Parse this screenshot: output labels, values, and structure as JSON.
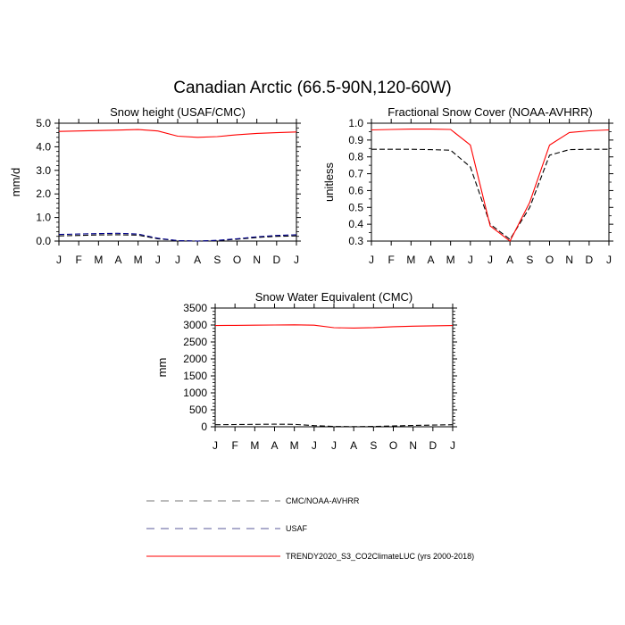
{
  "figure": {
    "title": "Canadian Arctic (66.5-90N,120-60W)"
  },
  "months": [
    "J",
    "F",
    "M",
    "A",
    "M",
    "J",
    "J",
    "A",
    "S",
    "O",
    "N",
    "D",
    "J"
  ],
  "legend": [
    {
      "label": "CMC/NOAA-AVHRR",
      "color": "#000000",
      "dash": "dashed"
    },
    {
      "label": "USAF",
      "color": "#00008b",
      "dash": "dashed"
    },
    {
      "label": "TRENDY2020_S3_CO2ClimateLUC (yrs 2000-2018)",
      "color": "#ff0000",
      "dash": "solid"
    }
  ],
  "chart_data": [
    {
      "type": "line",
      "title": "Snow height (USAF/CMC)",
      "xlabel": "",
      "ylabel": "mm/d",
      "categories": [
        "J",
        "F",
        "M",
        "A",
        "M",
        "J",
        "J",
        "A",
        "S",
        "O",
        "N",
        "D",
        "J"
      ],
      "ylim": [
        0,
        5
      ],
      "yticks": [
        "0.0",
        "1.0",
        "2.0",
        "3.0",
        "4.0",
        "5.0"
      ],
      "ytick_values": [
        0,
        1,
        2,
        3,
        4,
        5
      ],
      "grid": false,
      "series": [
        {
          "name": "TRENDY2020_S3_CO2ClimateLUC (yrs 2000-2018)",
          "color": "#ff0000",
          "dash": "solid",
          "values": [
            4.65,
            4.67,
            4.69,
            4.71,
            4.73,
            4.67,
            4.45,
            4.4,
            4.43,
            4.51,
            4.57,
            4.6,
            4.63
          ]
        },
        {
          "name": "CMC/NOAA-AVHRR",
          "color": "#000000",
          "dash": "dashed",
          "values": [
            0.22,
            0.24,
            0.26,
            0.27,
            0.25,
            0.1,
            0.02,
            0.0,
            0.02,
            0.08,
            0.15,
            0.2,
            0.22
          ]
        },
        {
          "name": "USAF",
          "color": "#00008b",
          "dash": "dashed",
          "values": [
            0.28,
            0.3,
            0.32,
            0.33,
            0.3,
            0.12,
            0.02,
            0.0,
            0.03,
            0.1,
            0.18,
            0.24,
            0.27
          ]
        }
      ]
    },
    {
      "type": "line",
      "title": "Fractional Snow Cover (NOAA-AVHRR)",
      "xlabel": "",
      "ylabel": "unitless",
      "categories": [
        "J",
        "F",
        "M",
        "A",
        "M",
        "J",
        "J",
        "A",
        "S",
        "O",
        "N",
        "D",
        "J"
      ],
      "ylim": [
        0.3,
        1.0
      ],
      "yticks": [
        "0.3",
        "0.4",
        "0.5",
        "0.6",
        "0.7",
        "0.8",
        "0.9",
        "1.0"
      ],
      "ytick_values": [
        0.3,
        0.4,
        0.5,
        0.6,
        0.7,
        0.8,
        0.9,
        1.0
      ],
      "grid": false,
      "series": [
        {
          "name": "TRENDY2020_S3_CO2ClimateLUC (yrs 2000-2018)",
          "color": "#ff0000",
          "dash": "solid",
          "values": [
            0.96,
            0.963,
            0.965,
            0.965,
            0.963,
            0.87,
            0.39,
            0.3,
            0.53,
            0.87,
            0.945,
            0.955,
            0.96
          ]
        },
        {
          "name": "CMC/NOAA-AVHRR",
          "color": "#000000",
          "dash": "dashed",
          "values": [
            0.845,
            0.845,
            0.845,
            0.843,
            0.84,
            0.74,
            0.4,
            0.31,
            0.5,
            0.81,
            0.843,
            0.845,
            0.845
          ]
        }
      ]
    },
    {
      "type": "line",
      "title": "Snow Water Equivalent (CMC)",
      "xlabel": "",
      "ylabel": "mm",
      "categories": [
        "J",
        "F",
        "M",
        "A",
        "M",
        "J",
        "J",
        "A",
        "S",
        "O",
        "N",
        "D",
        "J"
      ],
      "ylim": [
        0,
        3500
      ],
      "yticks": [
        "0",
        "500",
        "1000",
        "1500",
        "2000",
        "2500",
        "3000",
        "3500"
      ],
      "ytick_values": [
        0,
        500,
        1000,
        1500,
        2000,
        2500,
        3000,
        3500
      ],
      "grid": false,
      "series": [
        {
          "name": "TRENDY2020_S3_CO2ClimateLUC (yrs 2000-2018)",
          "color": "#ff0000",
          "dash": "solid",
          "values": [
            2985,
            2990,
            2995,
            3000,
            3005,
            2995,
            2920,
            2910,
            2925,
            2950,
            2965,
            2975,
            2985
          ]
        },
        {
          "name": "CMC/NOAA-AVHRR",
          "color": "#000000",
          "dash": "dashed",
          "values": [
            60,
            65,
            70,
            75,
            70,
            35,
            10,
            5,
            10,
            25,
            40,
            50,
            60
          ]
        }
      ]
    }
  ]
}
